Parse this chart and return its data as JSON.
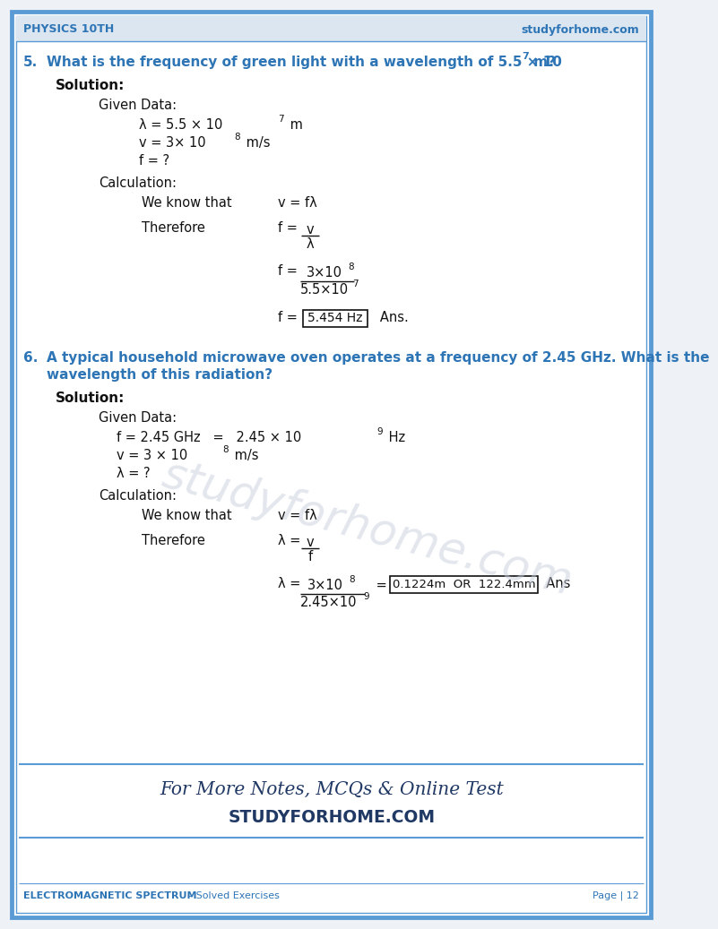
{
  "page_bg": "#eef2f7",
  "content_bg": "#ffffff",
  "border_outer_color": "#5b9bd5",
  "border_inner_color": "#5b9bd5",
  "header_bg": "#dce6f1",
  "header_left": "PHYSICS 10TH",
  "header_right": "studyforhome.com",
  "medium_blue": "#2e75b6",
  "dark_blue": "#1f3864",
  "black": "#111111",
  "light_blue": "#5b9bd5",
  "q5_num": "5.",
  "q5_q1": "What is the frequency of green light with a wavelength of 5.5 × 10",
  "q5_q1_sup": "7",
  "q5_q1_end": " m?",
  "q5_sol": "Solution:",
  "q5_given": "Given Data:",
  "q5_lam_base": "λ = 5.5 × 10",
  "q5_lam_sup": "7",
  "q5_lam_end": " m",
  "q5_v_base": "v = 3× 10",
  "q5_v_sup": "8",
  "q5_v_end": " m/s",
  "q5_f_unk": "f = ?",
  "q5_calc": "Calculation:",
  "q5_wkt": "We know that",
  "q5_wkt_eq": "v = fλ",
  "q5_therefore": "Therefore",
  "q5_f_eq": "f = ",
  "q5_frac1_n": "v",
  "q5_frac1_d": "λ",
  "q5_f_eq2": "f = ",
  "q5_frac2_n_base": "3×10",
  "q5_frac2_n_sup": "8",
  "q5_frac2_d_base": "5.5×10",
  "q5_frac2_d_sup": "7",
  "q5_f_eq3": "f = ",
  "q5_ans_box": "5.454 Hz",
  "q5_ans": "   Ans.",
  "q6_num": "6.",
  "q6_q1": "A typical household microwave oven operates at a frequency of 2.45 GHz. What is the",
  "q6_q2": "wavelength of this radiation?",
  "q6_sol": "Solution:",
  "q6_given": "Given Data:",
  "q6_f_base": "f = 2.45 GHz   =   2.45 × 10",
  "q6_f_sup": "9",
  "q6_f_end": " Hz",
  "q6_v_base": "v = 3 × 10",
  "q6_v_sup": "8",
  "q6_v_end": " m/s",
  "q6_lam_unk": "λ = ?",
  "q6_calc": "Calculation:",
  "q6_wkt": "We know that",
  "q6_wkt_eq": "v = fλ",
  "q6_therefore": "Therefore",
  "q6_lam_eq": "λ = ",
  "q6_frac1_n": "v",
  "q6_frac1_d": "f",
  "q6_lam_eq2": "λ = ",
  "q6_frac2_n_base": "3×10",
  "q6_frac2_n_sup": "8",
  "q6_frac2_d_base": "2.45×10",
  "q6_frac2_d_sup": "9",
  "q6_eq": " = ",
  "q6_ans_box": "0.1224m  OR  122.4mm",
  "q6_ans": "  Ans",
  "promo1": "For More Notes, MCQs & Online Test",
  "promo2": "STUDYFORHOME.COM",
  "foot_left": "ELECTROMAGNETIC SPECTRUM",
  "foot_mid": " – Solved Exercises",
  "foot_right": "Page | 12",
  "watermark": "studyforhome.com"
}
